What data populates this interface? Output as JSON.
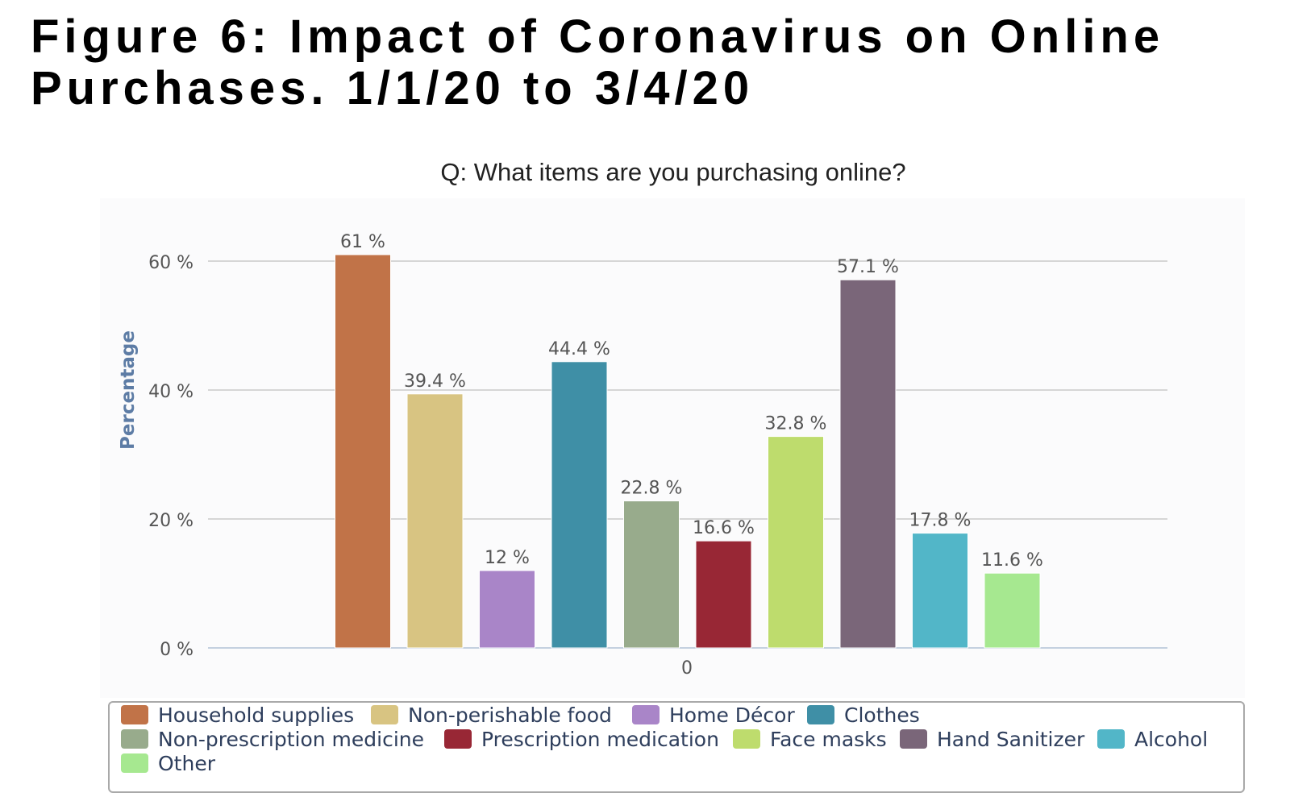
{
  "header": {
    "title": "Figure 6: Impact of Coronavirus on Online Purchases. 1/1/20 to 3/4/20"
  },
  "chart_data": {
    "type": "bar",
    "title": "Q: What items are you purchasing online?",
    "ylabel": "Percentage",
    "xlabel": "",
    "ylim": [
      0,
      60
    ],
    "yticks": [
      "0 %",
      "20 %",
      "40 %",
      "60 %"
    ],
    "xticks": [
      "0"
    ],
    "grid": true,
    "legend_position": "bottom",
    "series": [
      {
        "name": "Household supplies",
        "value": 61,
        "label": "61 %",
        "color": "#c17348"
      },
      {
        "name": "Non-perishable food",
        "value": 39.4,
        "label": "39.4 %",
        "color": "#d8c482"
      },
      {
        "name": "Home Décor",
        "value": 12,
        "label": "12 %",
        "color": "#a985c8"
      },
      {
        "name": "Clothes",
        "value": 44.4,
        "label": "44.4 %",
        "color": "#3f8fa6"
      },
      {
        "name": "Non-prescription medicine",
        "value": 22.8,
        "label": "22.8 %",
        "color": "#98ab8c"
      },
      {
        "name": "Prescription medication",
        "value": 16.6,
        "label": "16.6 %",
        "color": "#982735"
      },
      {
        "name": "Face masks",
        "value": 32.8,
        "label": "32.8 %",
        "color": "#bedc6d"
      },
      {
        "name": "Hand Sanitizer",
        "value": 57.1,
        "label": "57.1 %",
        "color": "#7a6679"
      },
      {
        "name": "Alcohol",
        "value": 17.8,
        "label": "17.8 %",
        "color": "#52b6c8"
      },
      {
        "name": "Other",
        "value": 11.6,
        "label": "11.6 %",
        "color": "#a6e890"
      }
    ]
  }
}
